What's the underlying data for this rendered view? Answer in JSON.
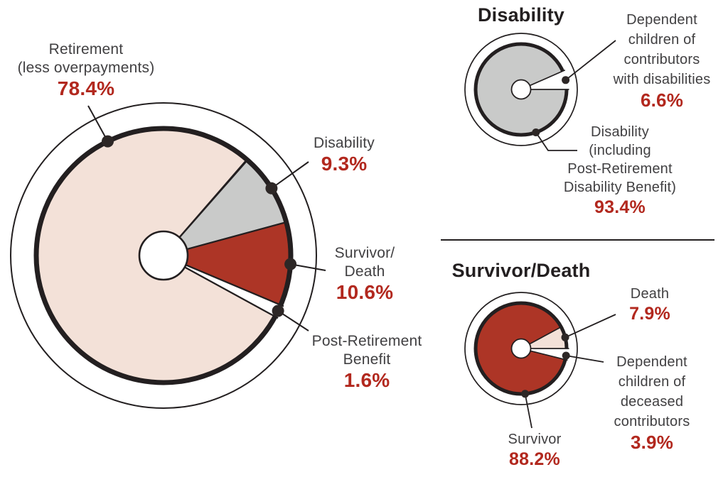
{
  "palette": {
    "slice_pink": "#f3e1d8",
    "slice_gray": "#c9cac9",
    "slice_red": "#ad3526",
    "slice_white": "#ffffff",
    "pct_red": "#b2281e",
    "label_gray": "#414042",
    "title_black": "#231f20",
    "line_black": "#231f20"
  },
  "main_chart": {
    "callouts": {
      "retirement": {
        "line1": "Retirement",
        "line2": "(less overpayments)",
        "pct": "78.4%"
      },
      "disability": {
        "line1": "Disability",
        "pct": "9.3%"
      },
      "survivor": {
        "line1": "Survivor/",
        "line2": "Death",
        "pct": "10.6%"
      },
      "post_retirement": {
        "line1": "Post-Retirement",
        "line2": "Benefit",
        "pct": "1.6%"
      }
    }
  },
  "disability_chart": {
    "title": "Disability",
    "callouts": {
      "dependent_children": {
        "line1": "Dependent",
        "line2": "children of",
        "line3": "contributors",
        "line4": "with disabilities",
        "pct": "6.6%"
      },
      "disability_incl": {
        "line1": "Disability",
        "line2": "(including",
        "line3": "Post-Retirement",
        "line4": "Disability Benefit)",
        "pct": "93.4%"
      }
    }
  },
  "survivor_chart": {
    "title": "Survivor/Death",
    "callouts": {
      "death": {
        "line1": "Death",
        "pct": "7.9%"
      },
      "dependent_children": {
        "line1": "Dependent",
        "line2": "children of",
        "line3": "deceased",
        "line4": "contributors",
        "pct": "3.9%"
      },
      "survivor": {
        "line1": "Survivor",
        "pct": "88.2%"
      }
    }
  },
  "chart_data": [
    {
      "id": "main",
      "type": "pie",
      "title": "",
      "unit": "%",
      "start_angle_deg": 41.3,
      "clockwise": true,
      "slices": [
        {
          "label": "Disability",
          "value": 9.3,
          "color": "#c9cac9"
        },
        {
          "label": "Survivor/Death",
          "value": 10.6,
          "color": "#ad3526"
        },
        {
          "label": "Post-Retirement Benefit",
          "value": 1.6,
          "color": "#ffffff"
        },
        {
          "label": "Retirement (less overpayments)",
          "value": 78.4,
          "color": "#f3e1d8"
        }
      ]
    },
    {
      "id": "disability",
      "type": "pie",
      "title": "Disability",
      "unit": "%",
      "start_angle_deg": 66.2,
      "clockwise": true,
      "slices": [
        {
          "label": "Dependent children of contributors with disabilities",
          "value": 6.6,
          "color": "#ffffff"
        },
        {
          "label": "Disability (including Post-Retirement Disability Benefit)",
          "value": 93.4,
          "color": "#c9cac9"
        }
      ]
    },
    {
      "id": "survivor",
      "type": "pie",
      "title": "Survivor/Death",
      "unit": "%",
      "start_angle_deg": 61.6,
      "clockwise": true,
      "slices": [
        {
          "label": "Death",
          "value": 7.9,
          "color": "#f3e1d8"
        },
        {
          "label": "Dependent children of deceased contributors",
          "value": 3.9,
          "color": "#ffffff"
        },
        {
          "label": "Survivor",
          "value": 88.2,
          "color": "#ad3526"
        }
      ]
    }
  ]
}
